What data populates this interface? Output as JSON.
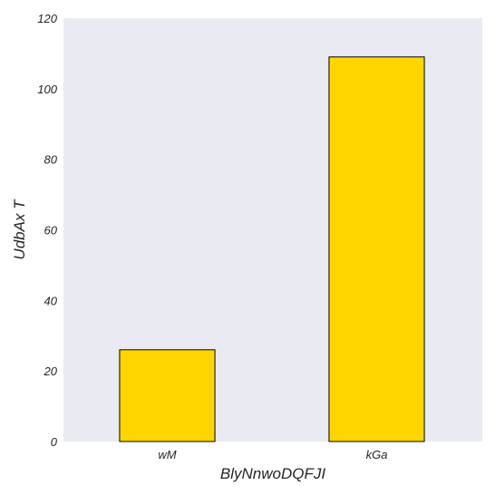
{
  "chart_data": {
    "type": "bar",
    "categories": [
      "wM",
      "kGa"
    ],
    "values": [
      26,
      109
    ],
    "title": "",
    "xlabel": "BlyNnwoDQFJI",
    "ylabel": "UdbAx T",
    "ylim": [
      0,
      120
    ],
    "yticks": [
      0,
      20,
      40,
      60,
      80,
      100,
      120
    ],
    "grid": false,
    "colors": {
      "plot_background": "#eaeaf2",
      "bar_fill": "#ffd700",
      "bar_edge": "#000000",
      "text": "#262626"
    }
  }
}
